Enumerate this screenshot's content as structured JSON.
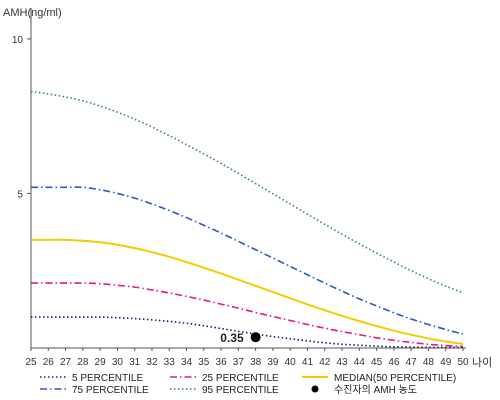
{
  "chart_data": {
    "type": "line",
    "ylabel": "AMH(ng/ml)",
    "xlabel": "나이",
    "xlim": [
      25,
      50
    ],
    "ylim": [
      0,
      11
    ],
    "yticks": [
      5,
      10
    ],
    "x": [
      25,
      26,
      27,
      28,
      29,
      30,
      31,
      32,
      33,
      34,
      35,
      36,
      37,
      38,
      39,
      40,
      41,
      42,
      43,
      44,
      45,
      46,
      47,
      48,
      49,
      50
    ],
    "x_tick_labels": [
      "25",
      "26",
      "27",
      "28",
      "29",
      "30",
      "31",
      "32",
      "33",
      "34",
      "35",
      "36",
      "37",
      "38",
      "39",
      "40",
      "41",
      "42",
      "43",
      "44",
      "45",
      "46",
      "47",
      "48",
      "49",
      "50"
    ],
    "grid": false,
    "legend_position": "bottom",
    "series": [
      {
        "name": "5 PERCENTILE",
        "color": "#1a1a6e",
        "style": "dotted",
        "values": [
          1.0,
          1.0,
          1.0,
          1.0,
          1.0,
          0.98,
          0.95,
          0.91,
          0.86,
          0.8,
          0.72,
          0.63,
          0.54,
          0.45,
          0.37,
          0.3,
          0.23,
          0.17,
          0.12,
          0.09,
          0.06,
          0.04,
          0.03,
          0.02,
          0.02,
          0.02
        ]
      },
      {
        "name": "25 PERCENTILE",
        "color": "#e0198c",
        "style": "dashdot",
        "values": [
          2.1,
          2.1,
          2.1,
          2.1,
          2.08,
          2.03,
          1.97,
          1.88,
          1.78,
          1.67,
          1.55,
          1.42,
          1.29,
          1.15,
          1.02,
          0.89,
          0.76,
          0.64,
          0.53,
          0.43,
          0.33,
          0.25,
          0.18,
          0.12,
          0.08,
          0.05
        ]
      },
      {
        "name": "MEDIAN(50 PERCENTILE)",
        "color": "#f2cc00",
        "style": "solid",
        "values": [
          3.5,
          3.5,
          3.5,
          3.47,
          3.42,
          3.34,
          3.23,
          3.1,
          2.95,
          2.78,
          2.6,
          2.41,
          2.21,
          2.01,
          1.81,
          1.61,
          1.41,
          1.22,
          1.04,
          0.87,
          0.71,
          0.56,
          0.43,
          0.31,
          0.21,
          0.13
        ]
      },
      {
        "name": "75 PERCENTILE",
        "color": "#2f54c8",
        "style": "dashdot",
        "values": [
          5.2,
          5.2,
          5.2,
          5.2,
          5.12,
          5.0,
          4.85,
          4.66,
          4.45,
          4.22,
          3.97,
          3.72,
          3.45,
          3.18,
          2.91,
          2.64,
          2.37,
          2.1,
          1.84,
          1.59,
          1.36,
          1.14,
          0.94,
          0.76,
          0.6,
          0.45
        ]
      },
      {
        "name": "95 PERCENTILE",
        "color": "#2e8b57",
        "style": "dotted",
        "values": [
          8.3,
          8.22,
          8.12,
          8.0,
          7.83,
          7.63,
          7.4,
          7.15,
          6.87,
          6.58,
          6.28,
          5.97,
          5.65,
          5.32,
          4.99,
          4.66,
          4.33,
          4.0,
          3.68,
          3.37,
          3.07,
          2.78,
          2.5,
          2.24,
          2.0,
          1.79
        ]
      }
    ],
    "marker": {
      "legend_label": "수진자의 AMH 농도",
      "x": 38,
      "y": 0.35,
      "label": "0.35",
      "color": "#000000"
    }
  }
}
